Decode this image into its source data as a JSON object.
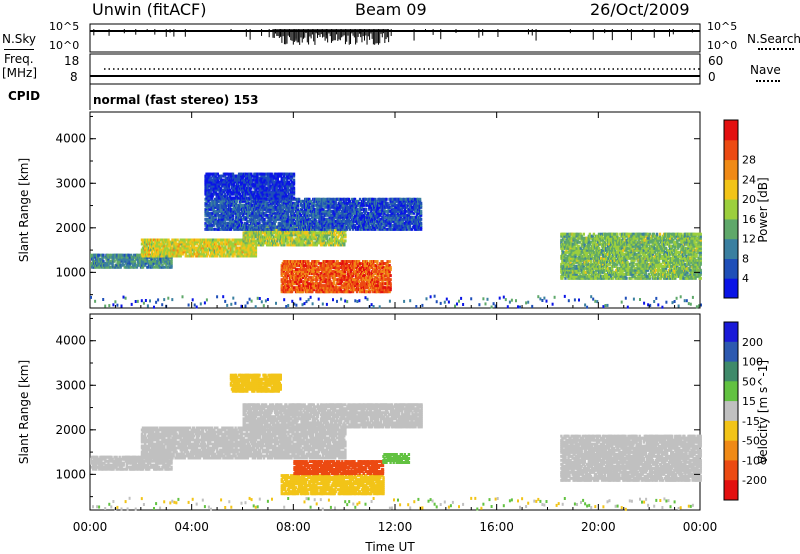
{
  "header": {
    "station": "Unwin (fitACF)",
    "beam": "Beam 09",
    "date": "26/Oct/2009"
  },
  "strip_labels": {
    "nsky": "N.Sky",
    "nsearch": "N.Search",
    "freq_line1": "Freq.",
    "freq_line2": "[MHz]",
    "nave": "Nave",
    "cpid": "CPID",
    "cpid_value": "normal (fast stereo) 153",
    "noise_left_top": "10^5",
    "noise_left_bottom": "10^0",
    "noise_right_top": "10^5",
    "noise_right_bottom": "10^0",
    "freq_left_top": "18",
    "freq_left_bottom": "8",
    "nave_right_top": "60",
    "nave_right_bottom": "0"
  },
  "chart_data": [
    {
      "type": "heatmap",
      "name": "power-panel",
      "ylabel": "Slant Range [km]",
      "xlabel": "",
      "xlim": [
        "00:00",
        "24:00"
      ],
      "ylim": [
        200,
        4600
      ],
      "y_ticks": [
        "1000",
        "2000",
        "3000",
        "4000"
      ],
      "colorbar": {
        "label": "Power [dB]",
        "ticks": [
          "4",
          "8",
          "12",
          "16",
          "20",
          "24",
          "28"
        ],
        "range": [
          0,
          32
        ],
        "colors": [
          "#0a14e6",
          "#1f4fb8",
          "#3a7fa0",
          "#5fa86a",
          "#9ccf3d",
          "#f2c418",
          "#f08a16",
          "#ec4a12",
          "#e30f0f"
        ]
      },
      "regions": [
        {
          "t0": 0.0,
          "t1": 3.2,
          "r0": 1150,
          "r1": 1450,
          "level": 10
        },
        {
          "t0": 2.0,
          "t1": 6.5,
          "r0": 1400,
          "r1": 1800,
          "level": 18
        },
        {
          "t0": 6.0,
          "t1": 10.0,
          "r0": 1650,
          "r1": 2100,
          "level": 16
        },
        {
          "t0": 4.5,
          "t1": 9.5,
          "r0": 2000,
          "r1": 2700,
          "level": 6
        },
        {
          "t0": 4.5,
          "t1": 8.0,
          "r0": 2700,
          "r1": 3250,
          "level": 3
        },
        {
          "t0": 9.5,
          "t1": 13.0,
          "r0": 2000,
          "r1": 2700,
          "level": 5
        },
        {
          "t0": 7.5,
          "t1": 11.8,
          "r0": 600,
          "r1": 1300,
          "level": 26
        },
        {
          "t0": 18.5,
          "t1": 24.0,
          "r0": 900,
          "r1": 1900,
          "level": 14
        }
      ]
    },
    {
      "type": "heatmap",
      "name": "velocity-panel",
      "ylabel": "Slant Range [km]",
      "xlabel": "Time UT",
      "xlim": [
        "00:00",
        "24:00"
      ],
      "ylim": [
        200,
        4600
      ],
      "x_ticks": [
        "00:00",
        "04:00",
        "08:00",
        "12:00",
        "16:00",
        "20:00",
        "00:00"
      ],
      "y_ticks": [
        "1000",
        "2000",
        "3000",
        "4000"
      ],
      "colorbar": {
        "label": "Velocity [m s^-1]",
        "ticks": [
          "200",
          "100",
          "50",
          "15",
          "-15",
          "-50",
          "-100",
          "-200"
        ],
        "range": [
          -250,
          250
        ],
        "colors": [
          "#1a1ad8",
          "#2d59b0",
          "#3f8a6a",
          "#62c241",
          "#c0c0c0",
          "#f2c418",
          "#f08a16",
          "#ec4a12",
          "#e30f0f"
        ]
      },
      "regions": [
        {
          "t0": 0.0,
          "t1": 3.2,
          "r0": 1150,
          "r1": 1450,
          "level": 0
        },
        {
          "t0": 2.0,
          "t1": 10.0,
          "r0": 1400,
          "r1": 2100,
          "level": 0
        },
        {
          "t0": 6.0,
          "t1": 13.0,
          "r0": 2100,
          "r1": 2600,
          "level": 0
        },
        {
          "t0": 5.5,
          "t1": 7.5,
          "r0": 2900,
          "r1": 3300,
          "level": -40
        },
        {
          "t0": 7.5,
          "t1": 11.5,
          "r0": 600,
          "r1": 1050,
          "level": -40
        },
        {
          "t0": 8.0,
          "t1": 11.5,
          "r0": 1050,
          "r1": 1350,
          "level": -150
        },
        {
          "t0": 11.5,
          "t1": 12.5,
          "r0": 1300,
          "r1": 1500,
          "level": 40
        },
        {
          "t0": 18.5,
          "t1": 24.0,
          "r0": 900,
          "r1": 1900,
          "level": 0
        }
      ]
    }
  ]
}
